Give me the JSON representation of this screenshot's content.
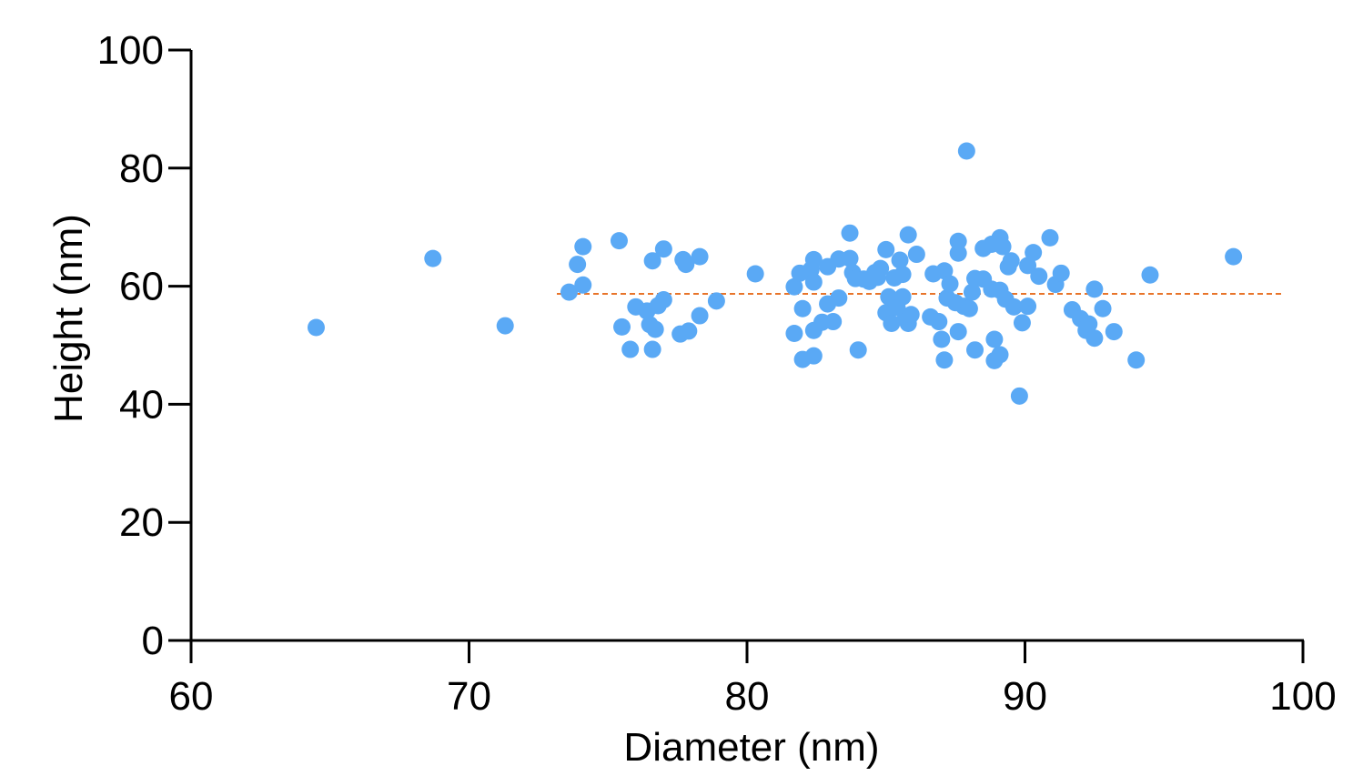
{
  "chart_data": {
    "type": "scatter",
    "title": "",
    "xlabel": "Diameter (nm)",
    "ylabel": "Height (nm)",
    "xlim": [
      60,
      100
    ],
    "ylim": [
      0,
      100
    ],
    "xticks": [
      "60",
      "70",
      "80",
      "90",
      "100"
    ],
    "yticks": [
      "0",
      "20",
      "40",
      "60",
      "80",
      "100"
    ],
    "grid": false,
    "legend": "none",
    "point_color": "#5aa9f5",
    "reference_line": {
      "y": 58.7,
      "style": "dashed",
      "color": "#e8742a"
    },
    "points": [
      [
        64.5,
        53.0
      ],
      [
        68.7,
        64.7
      ],
      [
        71.3,
        53.3
      ],
      [
        73.6,
        59.0
      ],
      [
        73.9,
        63.7
      ],
      [
        74.1,
        66.7
      ],
      [
        74.1,
        60.2
      ],
      [
        75.4,
        67.7
      ],
      [
        75.5,
        53.1
      ],
      [
        75.8,
        49.3
      ],
      [
        76.0,
        56.5
      ],
      [
        76.4,
        55.8
      ],
      [
        76.5,
        53.5
      ],
      [
        76.6,
        49.3
      ],
      [
        76.6,
        64.3
      ],
      [
        76.7,
        52.7
      ],
      [
        76.8,
        56.7
      ],
      [
        77.0,
        66.3
      ],
      [
        77.0,
        57.7
      ],
      [
        77.6,
        51.9
      ],
      [
        77.7,
        64.5
      ],
      [
        77.8,
        63.7
      ],
      [
        77.9,
        52.4
      ],
      [
        78.3,
        65.0
      ],
      [
        78.3,
        55.0
      ],
      [
        78.9,
        57.5
      ],
      [
        80.3,
        62.1
      ],
      [
        81.7,
        59.9
      ],
      [
        81.7,
        52.0
      ],
      [
        81.9,
        62.2
      ],
      [
        82.0,
        56.2
      ],
      [
        82.0,
        47.6
      ],
      [
        82.3,
        62.8
      ],
      [
        82.4,
        64.5
      ],
      [
        82.4,
        60.7
      ],
      [
        82.4,
        52.5
      ],
      [
        82.4,
        48.2
      ],
      [
        82.7,
        53.9
      ],
      [
        82.9,
        63.3
      ],
      [
        82.9,
        57.0
      ],
      [
        83.1,
        54.0
      ],
      [
        83.3,
        64.6
      ],
      [
        83.3,
        58.0
      ],
      [
        83.7,
        69.0
      ],
      [
        83.7,
        64.7
      ],
      [
        83.8,
        62.3
      ],
      [
        83.9,
        61.3
      ],
      [
        84.0,
        49.2
      ],
      [
        84.2,
        61.2
      ],
      [
        84.4,
        60.8
      ],
      [
        84.6,
        62.3
      ],
      [
        84.7,
        61.5
      ],
      [
        84.8,
        63.0
      ],
      [
        85.0,
        66.2
      ],
      [
        85.0,
        55.5
      ],
      [
        85.1,
        58.2
      ],
      [
        85.2,
        53.7
      ],
      [
        85.3,
        61.4
      ],
      [
        85.4,
        56.4
      ],
      [
        85.5,
        64.4
      ],
      [
        85.6,
        62.0
      ],
      [
        85.6,
        58.2
      ],
      [
        85.7,
        54.5
      ],
      [
        85.8,
        68.7
      ],
      [
        85.8,
        53.7
      ],
      [
        85.9,
        55.2
      ],
      [
        86.1,
        65.4
      ],
      [
        86.6,
        54.8
      ],
      [
        86.7,
        62.1
      ],
      [
        86.9,
        54.0
      ],
      [
        87.0,
        51.0
      ],
      [
        87.1,
        47.5
      ],
      [
        87.1,
        62.6
      ],
      [
        87.2,
        58.0
      ],
      [
        87.3,
        60.4
      ],
      [
        87.5,
        57.2
      ],
      [
        87.6,
        65.6
      ],
      [
        87.6,
        67.6
      ],
      [
        87.6,
        52.3
      ],
      [
        87.8,
        56.6
      ],
      [
        87.9,
        82.9
      ],
      [
        88.0,
        56.2
      ],
      [
        88.1,
        59.0
      ],
      [
        88.2,
        61.3
      ],
      [
        88.2,
        49.2
      ],
      [
        88.5,
        61.2
      ],
      [
        88.5,
        66.4
      ],
      [
        88.8,
        59.5
      ],
      [
        88.8,
        67.1
      ],
      [
        88.9,
        51.0
      ],
      [
        88.9,
        47.4
      ],
      [
        89.1,
        48.4
      ],
      [
        89.1,
        59.3
      ],
      [
        89.1,
        68.2
      ],
      [
        89.2,
        66.7
      ],
      [
        89.3,
        57.8
      ],
      [
        89.4,
        63.3
      ],
      [
        89.5,
        64.3
      ],
      [
        89.6,
        56.5
      ],
      [
        89.8,
        41.4
      ],
      [
        89.9,
        53.8
      ],
      [
        90.1,
        56.6
      ],
      [
        90.1,
        63.5
      ],
      [
        90.3,
        65.7
      ],
      [
        90.5,
        61.7
      ],
      [
        90.9,
        68.2
      ],
      [
        91.1,
        60.3
      ],
      [
        91.3,
        62.2
      ],
      [
        91.7,
        56.0
      ],
      [
        92.0,
        54.5
      ],
      [
        92.2,
        52.5
      ],
      [
        92.3,
        53.6
      ],
      [
        92.5,
        51.2
      ],
      [
        92.5,
        59.5
      ],
      [
        92.8,
        56.2
      ],
      [
        93.2,
        52.3
      ],
      [
        94.0,
        47.5
      ],
      [
        94.5,
        61.9
      ],
      [
        97.5,
        65.0
      ]
    ]
  }
}
